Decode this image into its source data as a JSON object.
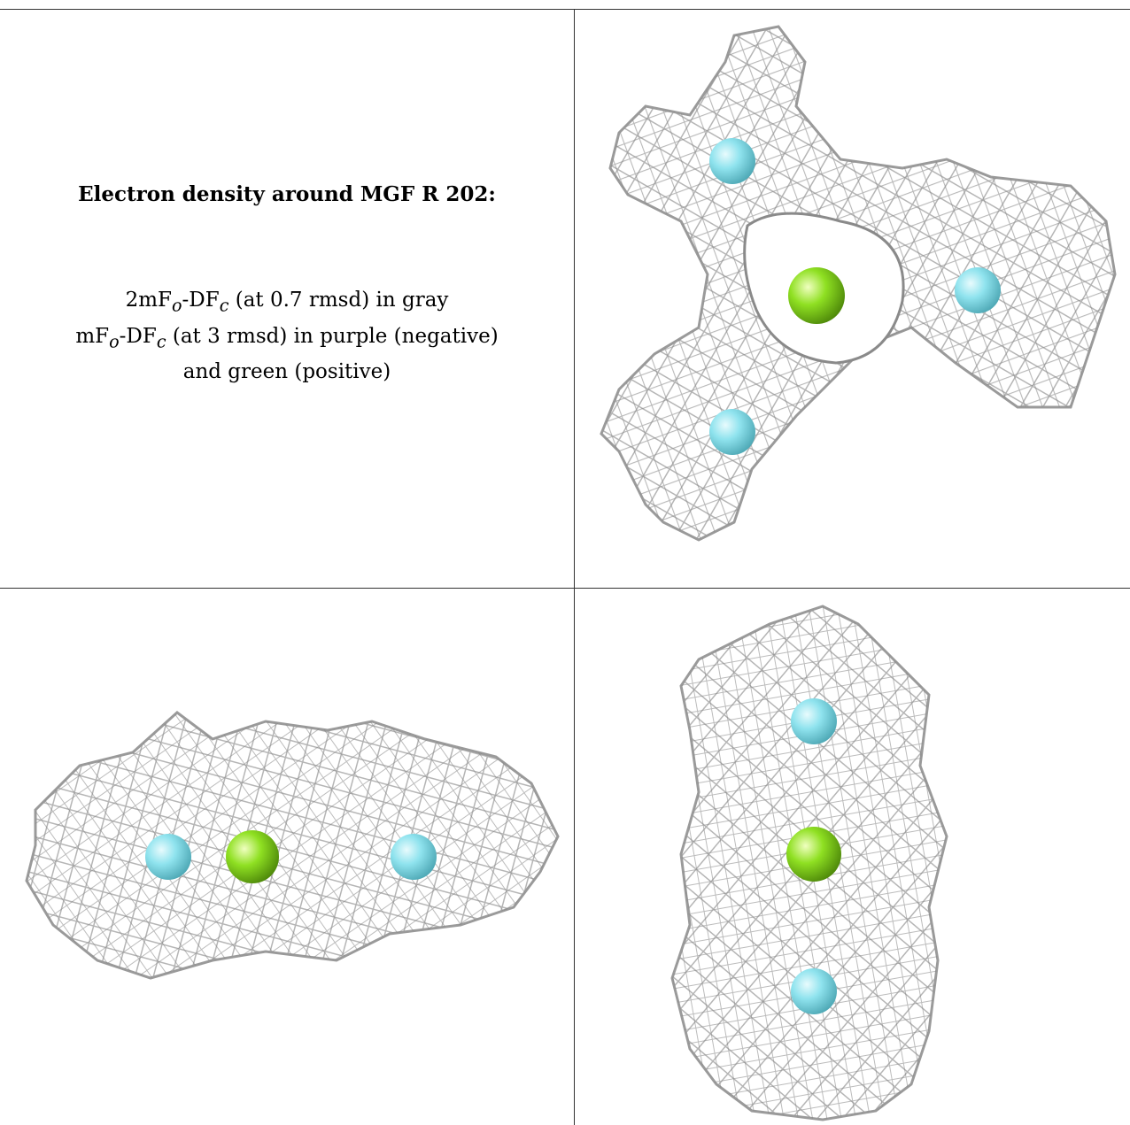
{
  "caption": {
    "title": "Electron density around MGF R 202:",
    "line1": {
      "a": "2mF",
      "b": "o",
      "c": "-DF",
      "d": "c",
      "e": " (at 0.7 rmsd) in gray"
    },
    "line2": {
      "a": "mF",
      "b": "o",
      "c": "-DF",
      "d": "c",
      "e": " (at 3 rmsd) in purple (negative)"
    },
    "line3": "and green (positive)"
  },
  "colors": {
    "mesh": "#b8b8b8",
    "mesh_dark": "#7d7d7d",
    "fluorine": "#8fe3ee",
    "magnesium": "#8fe022",
    "border": "#333333"
  },
  "views": [
    {
      "name": "view-top",
      "atoms": [
        "F",
        "Mg",
        "F",
        "F"
      ]
    },
    {
      "name": "view-side",
      "atoms": [
        "F",
        "Mg",
        "F"
      ]
    },
    {
      "name": "view-end",
      "atoms": [
        "F",
        "Mg",
        "F"
      ]
    }
  ]
}
